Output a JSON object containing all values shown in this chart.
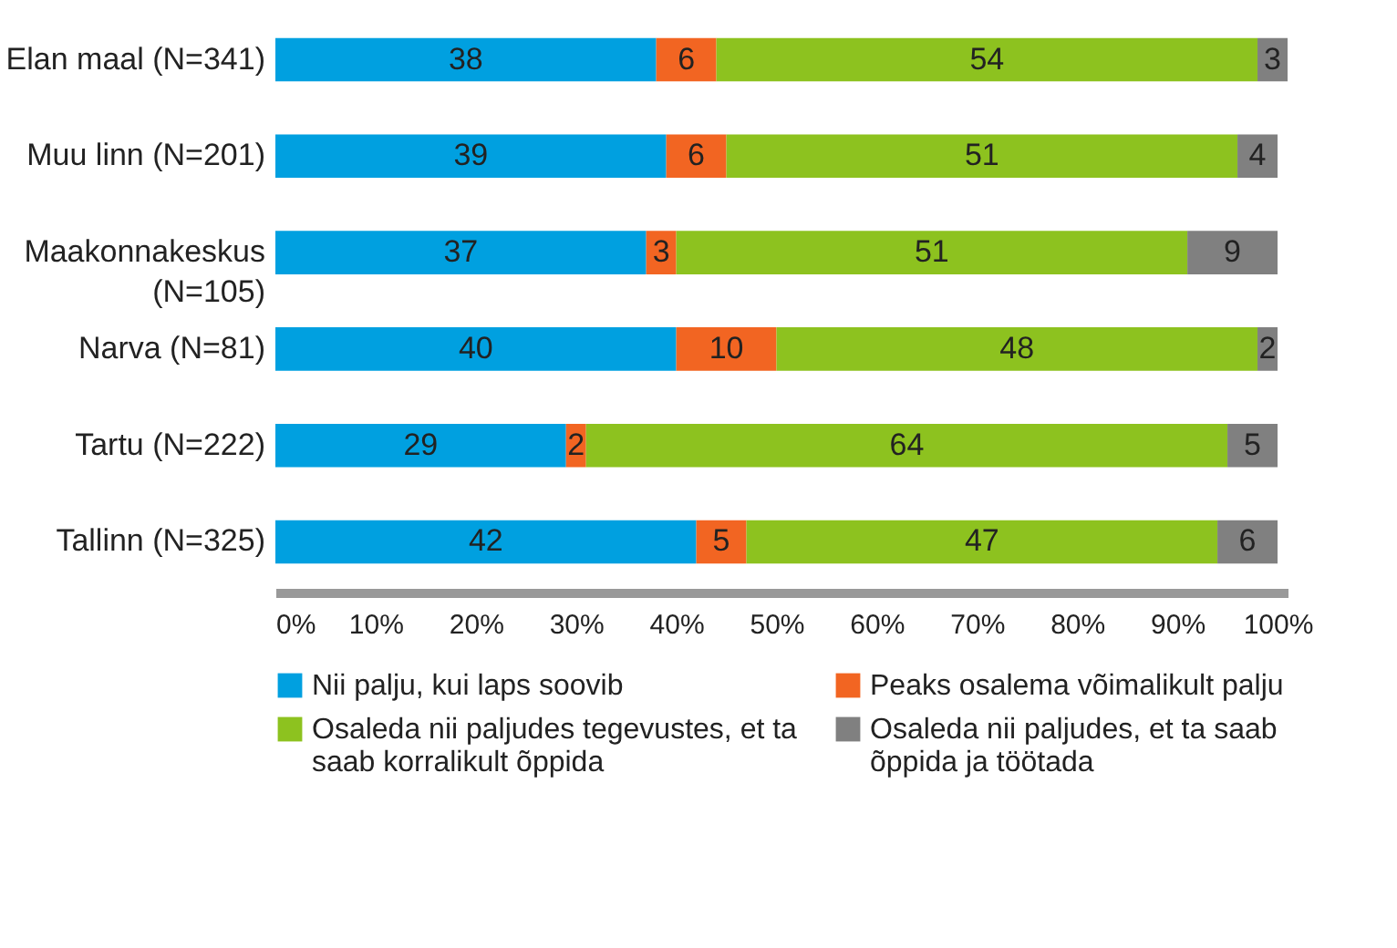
{
  "chart_data": {
    "type": "bar",
    "orientation": "horizontal",
    "stacked": true,
    "data_labels": true,
    "legend": "bottom",
    "grid": false,
    "categories": [
      "Elan maal (N=341)",
      "Muu linn (N=201)",
      "Maakonnakeskus (N=105)",
      "Narva (N=81)",
      "Tartu (N=222)",
      "Tallinn (N=325)"
    ],
    "xlim": [
      0,
      101
    ],
    "xticks": [
      {
        "value": 0,
        "label": "0%"
      },
      {
        "value": 10,
        "label": "10%"
      },
      {
        "value": 20,
        "label": "20%"
      },
      {
        "value": 30,
        "label": "30%"
      },
      {
        "value": 40,
        "label": "40%"
      },
      {
        "value": 50,
        "label": "50%"
      },
      {
        "value": 60,
        "label": "60%"
      },
      {
        "value": 70,
        "label": "70%"
      },
      {
        "value": 80,
        "label": "80%"
      },
      {
        "value": 90,
        "label": "90%"
      },
      {
        "value": 100,
        "label": "100%"
      }
    ],
    "series": [
      {
        "name": "Nii palju, kui laps soovib",
        "color": "#00a0e0",
        "values": [
          38,
          39,
          37,
          40,
          29,
          42
        ]
      },
      {
        "name": "Peaks osalema võimalikult palju",
        "color": "#f26522",
        "values": [
          6,
          6,
          3,
          10,
          2,
          5
        ]
      },
      {
        "name": "Osaleda nii paljudes tegevustes, et ta saab korralikult õppida",
        "color": "#8dc21f",
        "values": [
          54,
          51,
          51,
          48,
          64,
          47
        ]
      },
      {
        "name": "Osaleda nii paljudes, et ta saab õppida ja töötada",
        "color": "#808080",
        "values": [
          3,
          4,
          9,
          2,
          5,
          6
        ]
      }
    ]
  }
}
